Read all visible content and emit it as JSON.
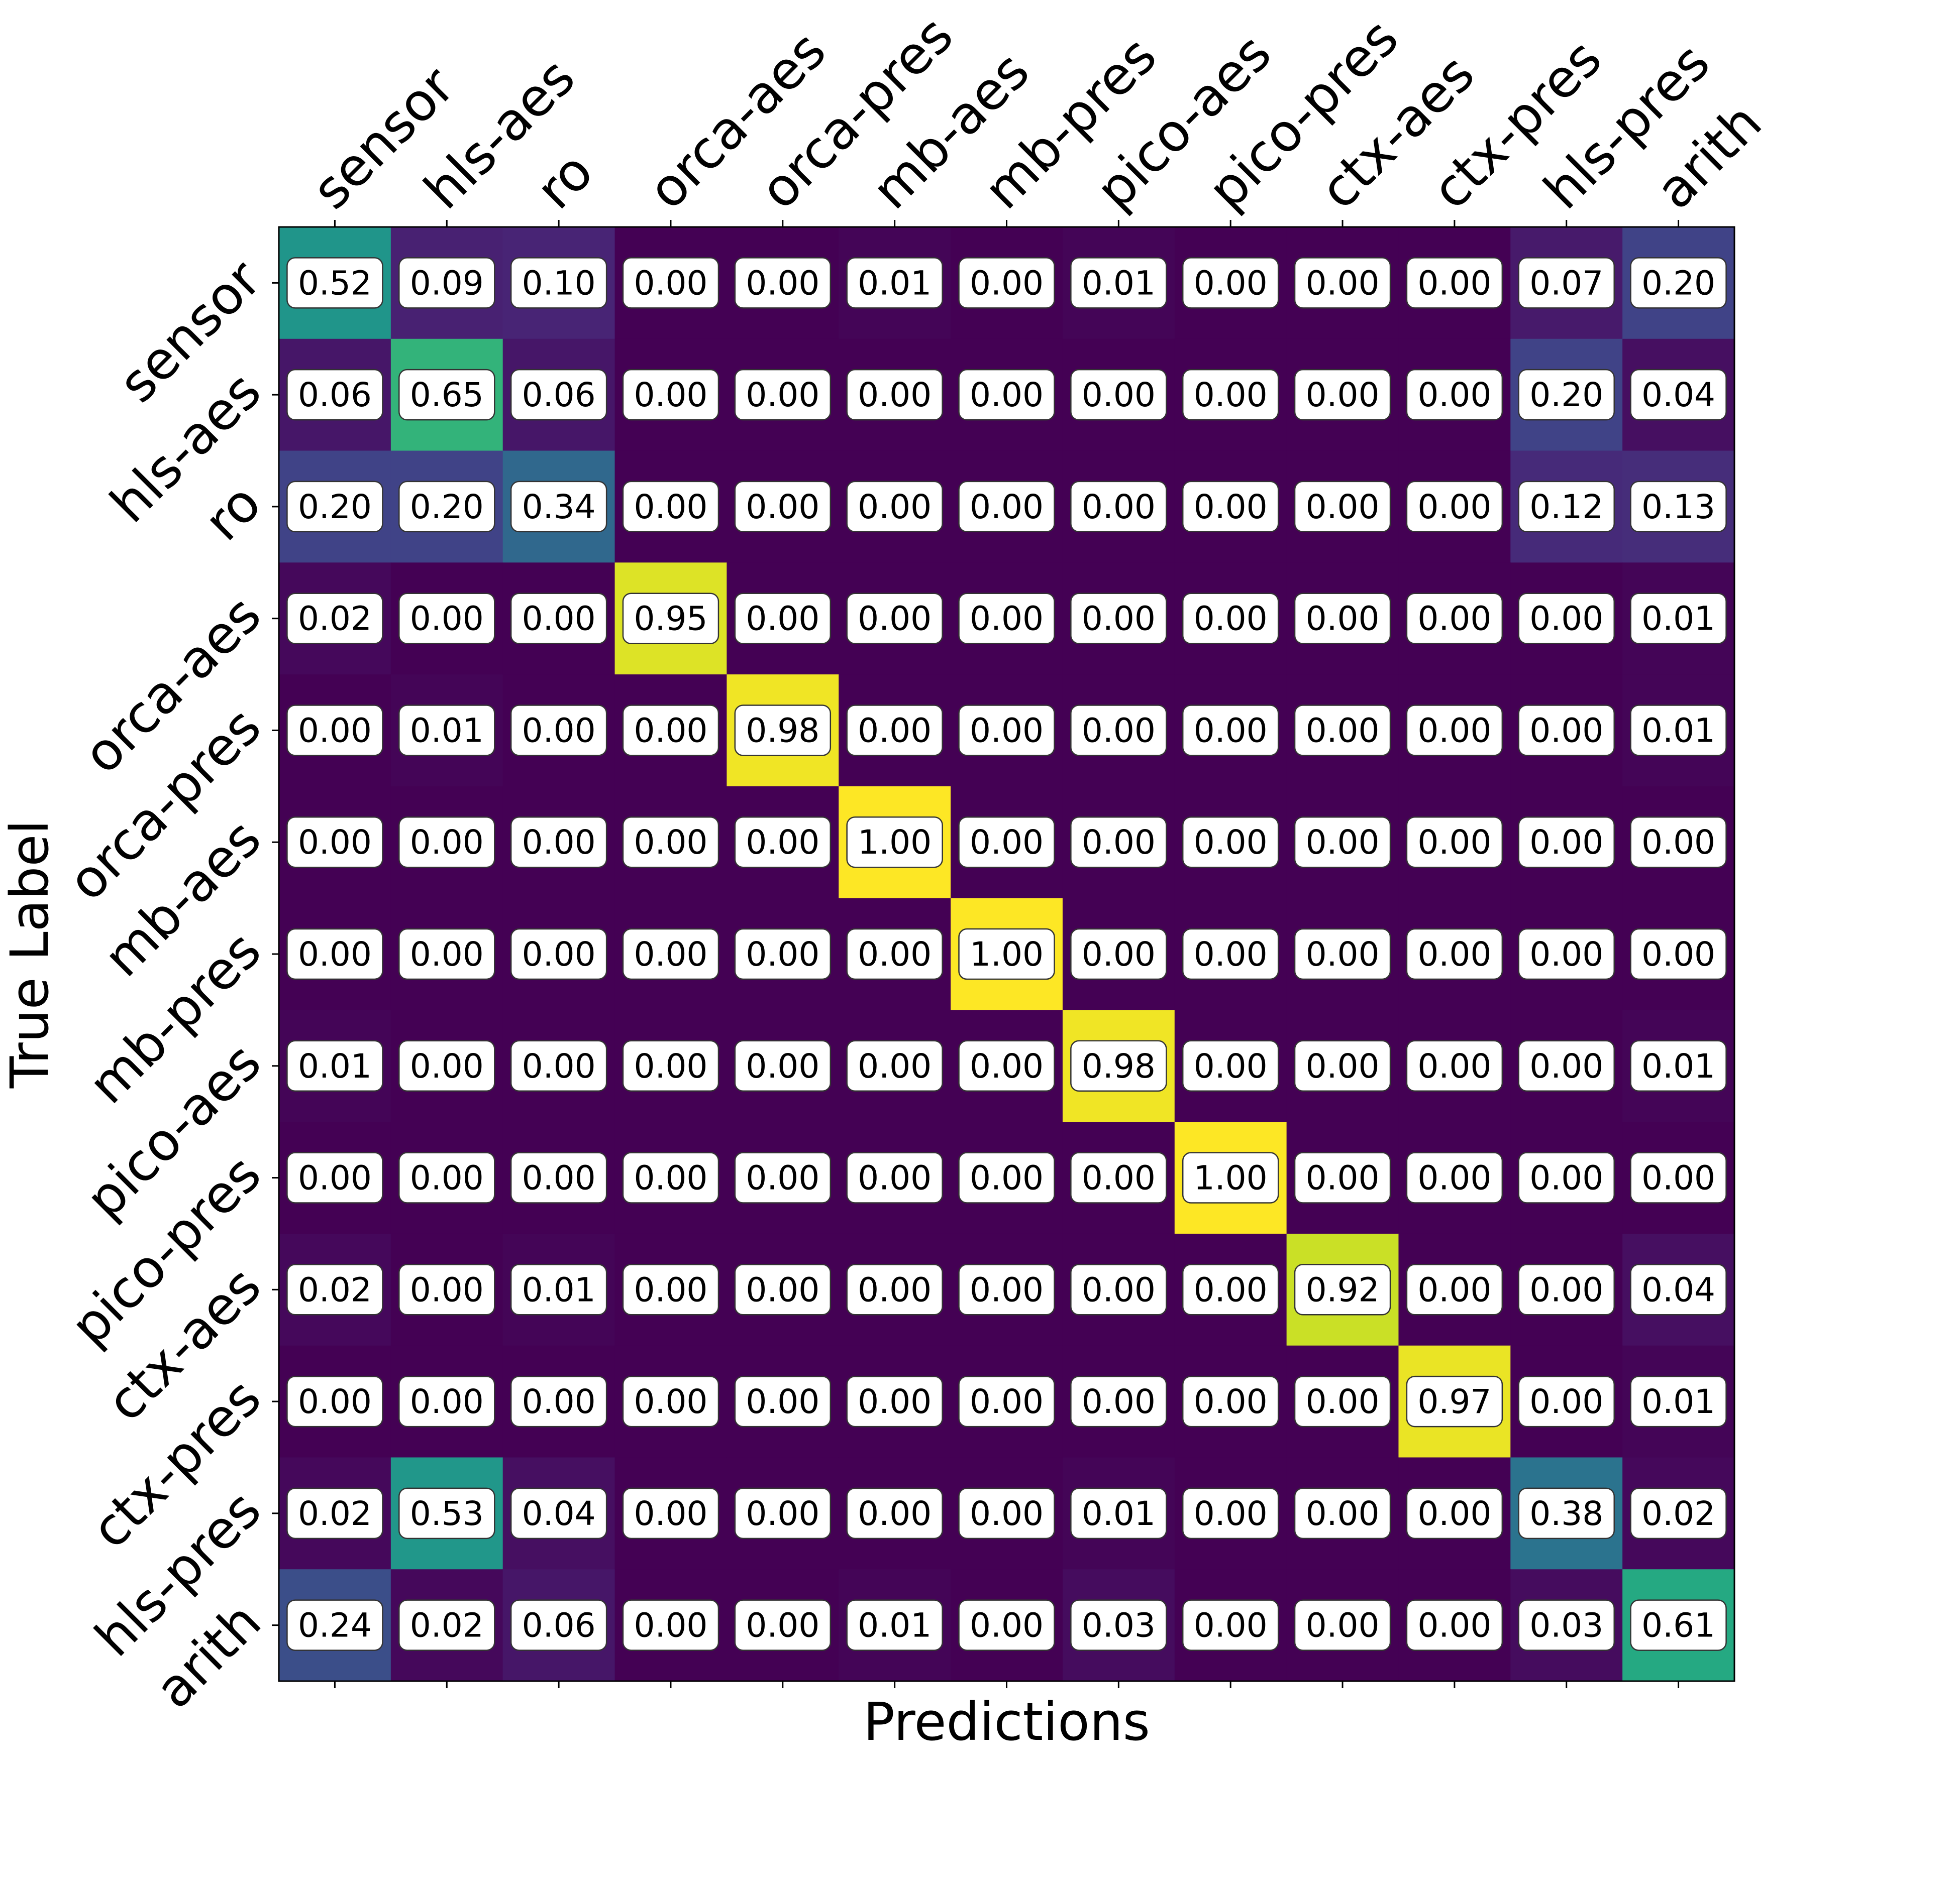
{
  "chart_data": {
    "type": "heatmap",
    "title": "",
    "xlabel": "Predictions",
    "ylabel": "True Label",
    "x_labels": [
      "sensor",
      "hls-aes",
      "ro",
      "orca-aes",
      "orca-pres",
      "mb-aes",
      "mb-pres",
      "pico-aes",
      "pico-pres",
      "ctx-aes",
      "ctx-pres",
      "hls-pres",
      "arith"
    ],
    "y_labels": [
      "sensor",
      "hls-aes",
      "ro",
      "orca-aes",
      "orca-pres",
      "mb-aes",
      "mb-pres",
      "pico-aes",
      "pico-pres",
      "ctx-aes",
      "ctx-pres",
      "hls-pres",
      "arith"
    ],
    "value_range": [
      0,
      1
    ],
    "colormap": "viridis",
    "values": [
      [
        0.52,
        0.09,
        0.1,
        0.0,
        0.0,
        0.01,
        0.0,
        0.01,
        0.0,
        0.0,
        0.0,
        0.07,
        0.2
      ],
      [
        0.06,
        0.65,
        0.06,
        0.0,
        0.0,
        0.0,
        0.0,
        0.0,
        0.0,
        0.0,
        0.0,
        0.2,
        0.04
      ],
      [
        0.2,
        0.2,
        0.34,
        0.0,
        0.0,
        0.0,
        0.0,
        0.0,
        0.0,
        0.0,
        0.0,
        0.12,
        0.13
      ],
      [
        0.02,
        0.0,
        0.0,
        0.95,
        0.0,
        0.0,
        0.0,
        0.0,
        0.0,
        0.0,
        0.0,
        0.0,
        0.01
      ],
      [
        0.0,
        0.01,
        0.0,
        0.0,
        0.98,
        0.0,
        0.0,
        0.0,
        0.0,
        0.0,
        0.0,
        0.0,
        0.01
      ],
      [
        0.0,
        0.0,
        0.0,
        0.0,
        0.0,
        1.0,
        0.0,
        0.0,
        0.0,
        0.0,
        0.0,
        0.0,
        0.0
      ],
      [
        0.0,
        0.0,
        0.0,
        0.0,
        0.0,
        0.0,
        1.0,
        0.0,
        0.0,
        0.0,
        0.0,
        0.0,
        0.0
      ],
      [
        0.01,
        0.0,
        0.0,
        0.0,
        0.0,
        0.0,
        0.0,
        0.98,
        0.0,
        0.0,
        0.0,
        0.0,
        0.01
      ],
      [
        0.0,
        0.0,
        0.0,
        0.0,
        0.0,
        0.0,
        0.0,
        0.0,
        1.0,
        0.0,
        0.0,
        0.0,
        0.0
      ],
      [
        0.02,
        0.0,
        0.01,
        0.0,
        0.0,
        0.0,
        0.0,
        0.0,
        0.0,
        0.92,
        0.0,
        0.0,
        0.04
      ],
      [
        0.0,
        0.0,
        0.0,
        0.0,
        0.0,
        0.0,
        0.0,
        0.0,
        0.0,
        0.0,
        0.97,
        0.0,
        0.01
      ],
      [
        0.02,
        0.53,
        0.04,
        0.0,
        0.0,
        0.0,
        0.0,
        0.01,
        0.0,
        0.0,
        0.0,
        0.38,
        0.02
      ],
      [
        0.24,
        0.02,
        0.06,
        0.0,
        0.0,
        0.01,
        0.0,
        0.03,
        0.0,
        0.0,
        0.0,
        0.03,
        0.61
      ]
    ]
  }
}
